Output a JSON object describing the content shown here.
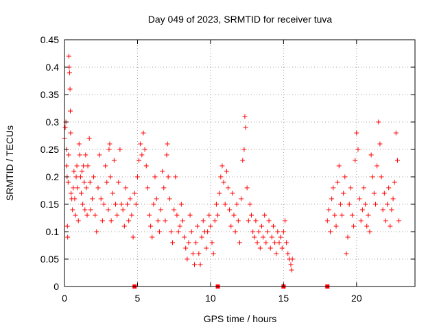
{
  "chart_data": {
    "type": "scatter",
    "title": "Day 049 of 2023, SRMTID for receiver tuva",
    "xlabel": "GPS time / hours",
    "ylabel": "SRMTID / TECUs",
    "xlim": [
      0,
      24
    ],
    "ylim": [
      0,
      0.45
    ],
    "xticks": [
      0,
      5,
      10,
      15,
      20
    ],
    "xtick_labels": [
      "0",
      "5",
      "10",
      "15",
      "20"
    ],
    "yticks": [
      0,
      0.05,
      0.1,
      0.15,
      0.2,
      0.25,
      0.3,
      0.35,
      0.4,
      0.45
    ],
    "ytick_labels": [
      "0",
      "0.05",
      "0.1",
      "0.15",
      "0.2",
      "0.25",
      "0.3",
      "0.35",
      "0.4",
      "0.45"
    ],
    "grid": true,
    "marker": "plus",
    "color": "#ff0000",
    "legend": "none",
    "series": [
      {
        "values": [
          [
            0.0,
            0.27
          ],
          [
            0.05,
            0.29
          ],
          [
            0.1,
            0.3
          ],
          [
            0.12,
            0.25
          ],
          [
            0.15,
            0.22
          ],
          [
            0.18,
            0.2
          ],
          [
            0.2,
            0.11
          ],
          [
            0.22,
            0.09
          ],
          [
            0.25,
            0.19
          ],
          [
            0.28,
            0.24
          ],
          [
            0.3,
            0.42
          ],
          [
            0.32,
            0.4
          ],
          [
            0.35,
            0.39
          ],
          [
            0.38,
            0.36
          ],
          [
            0.4,
            0.32
          ],
          [
            0.42,
            0.28
          ],
          [
            0.45,
            0.17
          ],
          [
            0.5,
            0.16
          ],
          [
            0.55,
            0.14
          ],
          [
            0.6,
            0.18
          ],
          [
            0.65,
            0.21
          ],
          [
            0.7,
            0.16
          ],
          [
            0.75,
            0.13
          ],
          [
            0.8,
            0.2
          ],
          [
            0.85,
            0.22
          ],
          [
            0.9,
            0.18
          ],
          [
            0.95,
            0.12
          ],
          [
            1.0,
            0.26
          ],
          [
            1.05,
            0.24
          ],
          [
            1.1,
            0.2
          ],
          [
            1.15,
            0.17
          ],
          [
            1.2,
            0.21
          ],
          [
            1.25,
            0.15
          ],
          [
            1.3,
            0.22
          ],
          [
            1.35,
            0.19
          ],
          [
            1.4,
            0.14
          ],
          [
            1.45,
            0.24
          ],
          [
            1.5,
            0.18
          ],
          [
            1.55,
            0.13
          ],
          [
            1.6,
            0.22
          ],
          [
            1.7,
            0.27
          ],
          [
            1.75,
            0.19
          ],
          [
            1.8,
            0.14
          ],
          [
            1.9,
            0.16
          ],
          [
            2.0,
            0.2
          ],
          [
            2.1,
            0.13
          ],
          [
            2.2,
            0.1
          ],
          [
            2.3,
            0.18
          ],
          [
            2.4,
            0.24
          ],
          [
            2.5,
            0.16
          ],
          [
            2.6,
            0.12
          ],
          [
            2.7,
            0.15
          ],
          [
            2.8,
            0.22
          ],
          [
            2.9,
            0.19
          ],
          [
            3.0,
            0.14
          ],
          [
            3.05,
            0.25
          ],
          [
            3.1,
            0.26
          ],
          [
            3.15,
            0.2
          ],
          [
            3.2,
            0.12
          ],
          [
            3.3,
            0.17
          ],
          [
            3.4,
            0.23
          ],
          [
            3.5,
            0.15
          ],
          [
            3.6,
            0.13
          ],
          [
            3.7,
            0.19
          ],
          [
            3.8,
            0.25
          ],
          [
            3.9,
            0.15
          ],
          [
            4.0,
            0.14
          ],
          [
            4.1,
            0.11
          ],
          [
            4.2,
            0.18
          ],
          [
            4.3,
            0.15
          ],
          [
            4.4,
            0.12
          ],
          [
            4.5,
            0.16
          ],
          [
            4.6,
            0.13
          ],
          [
            4.7,
            0.09
          ],
          [
            4.8,
            0.17
          ],
          [
            4.9,
            0.15
          ],
          [
            5.0,
            0.2
          ],
          [
            5.1,
            0.23
          ],
          [
            5.2,
            0.26
          ],
          [
            5.3,
            0.24
          ],
          [
            5.4,
            0.28
          ],
          [
            5.5,
            0.25
          ],
          [
            5.6,
            0.22
          ],
          [
            5.7,
            0.18
          ],
          [
            5.8,
            0.13
          ],
          [
            5.9,
            0.11
          ],
          [
            6.0,
            0.09
          ],
          [
            6.1,
            0.15
          ],
          [
            6.2,
            0.2
          ],
          [
            6.3,
            0.16
          ],
          [
            6.4,
            0.12
          ],
          [
            6.5,
            0.1
          ],
          [
            6.6,
            0.14
          ],
          [
            6.7,
            0.21
          ],
          [
            6.8,
            0.18
          ],
          [
            6.9,
            0.12
          ],
          [
            7.0,
            0.24
          ],
          [
            7.05,
            0.26
          ],
          [
            7.1,
            0.2
          ],
          [
            7.2,
            0.16
          ],
          [
            7.3,
            0.1
          ],
          [
            7.4,
            0.08
          ],
          [
            7.5,
            0.14
          ],
          [
            7.6,
            0.2
          ],
          [
            7.7,
            0.13
          ],
          [
            7.8,
            0.1
          ],
          [
            7.9,
            0.11
          ],
          [
            8.0,
            0.15
          ],
          [
            8.1,
            0.12
          ],
          [
            8.2,
            0.09
          ],
          [
            8.3,
            0.07
          ],
          [
            8.4,
            0.05
          ],
          [
            8.5,
            0.08
          ],
          [
            8.6,
            0.13
          ],
          [
            8.7,
            0.1
          ],
          [
            8.8,
            0.06
          ],
          [
            8.9,
            0.04
          ],
          [
            9.0,
            0.08
          ],
          [
            9.1,
            0.11
          ],
          [
            9.2,
            0.06
          ],
          [
            9.3,
            0.04
          ],
          [
            9.4,
            0.09
          ],
          [
            9.5,
            0.12
          ],
          [
            9.6,
            0.1
          ],
          [
            9.7,
            0.07
          ],
          [
            9.8,
            0.1
          ],
          [
            9.9,
            0.13
          ],
          [
            10.0,
            0.11
          ],
          [
            10.1,
            0.08
          ],
          [
            10.2,
            0.06
          ],
          [
            10.3,
            0.12
          ],
          [
            10.4,
            0.15
          ],
          [
            10.5,
            0.13
          ],
          [
            10.6,
            0.17
          ],
          [
            10.7,
            0.2
          ],
          [
            10.8,
            0.22
          ],
          [
            10.9,
            0.19
          ],
          [
            11.0,
            0.15
          ],
          [
            11.1,
            0.21
          ],
          [
            11.2,
            0.18
          ],
          [
            11.3,
            0.14
          ],
          [
            11.4,
            0.11
          ],
          [
            11.5,
            0.17
          ],
          [
            11.6,
            0.13
          ],
          [
            11.7,
            0.1
          ],
          [
            11.8,
            0.15
          ],
          [
            11.9,
            0.12
          ],
          [
            12.0,
            0.08
          ],
          [
            12.1,
            0.16
          ],
          [
            12.2,
            0.23
          ],
          [
            12.3,
            0.25
          ],
          [
            12.35,
            0.31
          ],
          [
            12.4,
            0.29
          ],
          [
            12.5,
            0.18
          ],
          [
            12.6,
            0.12
          ],
          [
            12.7,
            0.15
          ],
          [
            12.8,
            0.13
          ],
          [
            12.9,
            0.1
          ],
          [
            13.0,
            0.09
          ],
          [
            13.1,
            0.12
          ],
          [
            13.2,
            0.08
          ],
          [
            13.3,
            0.1
          ],
          [
            13.4,
            0.07
          ],
          [
            13.5,
            0.11
          ],
          [
            13.6,
            0.09
          ],
          [
            13.7,
            0.13
          ],
          [
            13.8,
            0.08
          ],
          [
            13.9,
            0.1
          ],
          [
            14.0,
            0.12
          ],
          [
            14.1,
            0.07
          ],
          [
            14.2,
            0.09
          ],
          [
            14.3,
            0.11
          ],
          [
            14.4,
            0.08
          ],
          [
            14.5,
            0.06
          ],
          [
            14.6,
            0.1
          ],
          [
            14.7,
            0.08
          ],
          [
            14.8,
            0.09
          ],
          [
            14.9,
            0.07
          ],
          [
            15.0,
            0.1
          ],
          [
            15.1,
            0.12
          ],
          [
            15.2,
            0.08
          ],
          [
            15.3,
            0.06
          ],
          [
            15.4,
            0.05
          ],
          [
            15.5,
            0.04
          ],
          [
            15.55,
            0.03
          ],
          [
            15.6,
            0.05
          ],
          [
            18.0,
            0.12
          ],
          [
            18.1,
            0.14
          ],
          [
            18.2,
            0.1
          ],
          [
            18.3,
            0.16
          ],
          [
            18.4,
            0.18
          ],
          [
            18.5,
            0.13
          ],
          [
            18.6,
            0.11
          ],
          [
            18.7,
            0.19
          ],
          [
            18.8,
            0.22
          ],
          [
            18.9,
            0.15
          ],
          [
            19.0,
            0.13
          ],
          [
            19.1,
            0.17
          ],
          [
            19.2,
            0.2
          ],
          [
            19.3,
            0.06
          ],
          [
            19.4,
            0.09
          ],
          [
            19.5,
            0.15
          ],
          [
            19.6,
            0.18
          ],
          [
            19.7,
            0.13
          ],
          [
            19.8,
            0.11
          ],
          [
            19.9,
            0.23
          ],
          [
            20.0,
            0.28
          ],
          [
            20.1,
            0.25
          ],
          [
            20.2,
            0.16
          ],
          [
            20.3,
            0.12
          ],
          [
            20.4,
            0.14
          ],
          [
            20.5,
            0.18
          ],
          [
            20.6,
            0.15
          ],
          [
            20.7,
            0.11
          ],
          [
            20.8,
            0.13
          ],
          [
            20.9,
            0.1
          ],
          [
            21.0,
            0.24
          ],
          [
            21.1,
            0.2
          ],
          [
            21.2,
            0.17
          ],
          [
            21.3,
            0.15
          ],
          [
            21.4,
            0.22
          ],
          [
            21.5,
            0.3
          ],
          [
            21.6,
            0.26
          ],
          [
            21.7,
            0.2
          ],
          [
            21.8,
            0.14
          ],
          [
            21.9,
            0.17
          ],
          [
            22.0,
            0.12
          ],
          [
            22.1,
            0.15
          ],
          [
            22.2,
            0.18
          ],
          [
            22.3,
            0.11
          ],
          [
            22.4,
            0.14
          ],
          [
            22.5,
            0.16
          ],
          [
            22.6,
            0.19
          ],
          [
            22.7,
            0.28
          ],
          [
            22.8,
            0.23
          ],
          [
            22.9,
            0.12
          ]
        ]
      },
      {
        "marker": "square",
        "values": [
          [
            4.8,
            0
          ],
          [
            10.5,
            0
          ],
          [
            15.0,
            0
          ],
          [
            18.0,
            0
          ]
        ]
      }
    ]
  }
}
